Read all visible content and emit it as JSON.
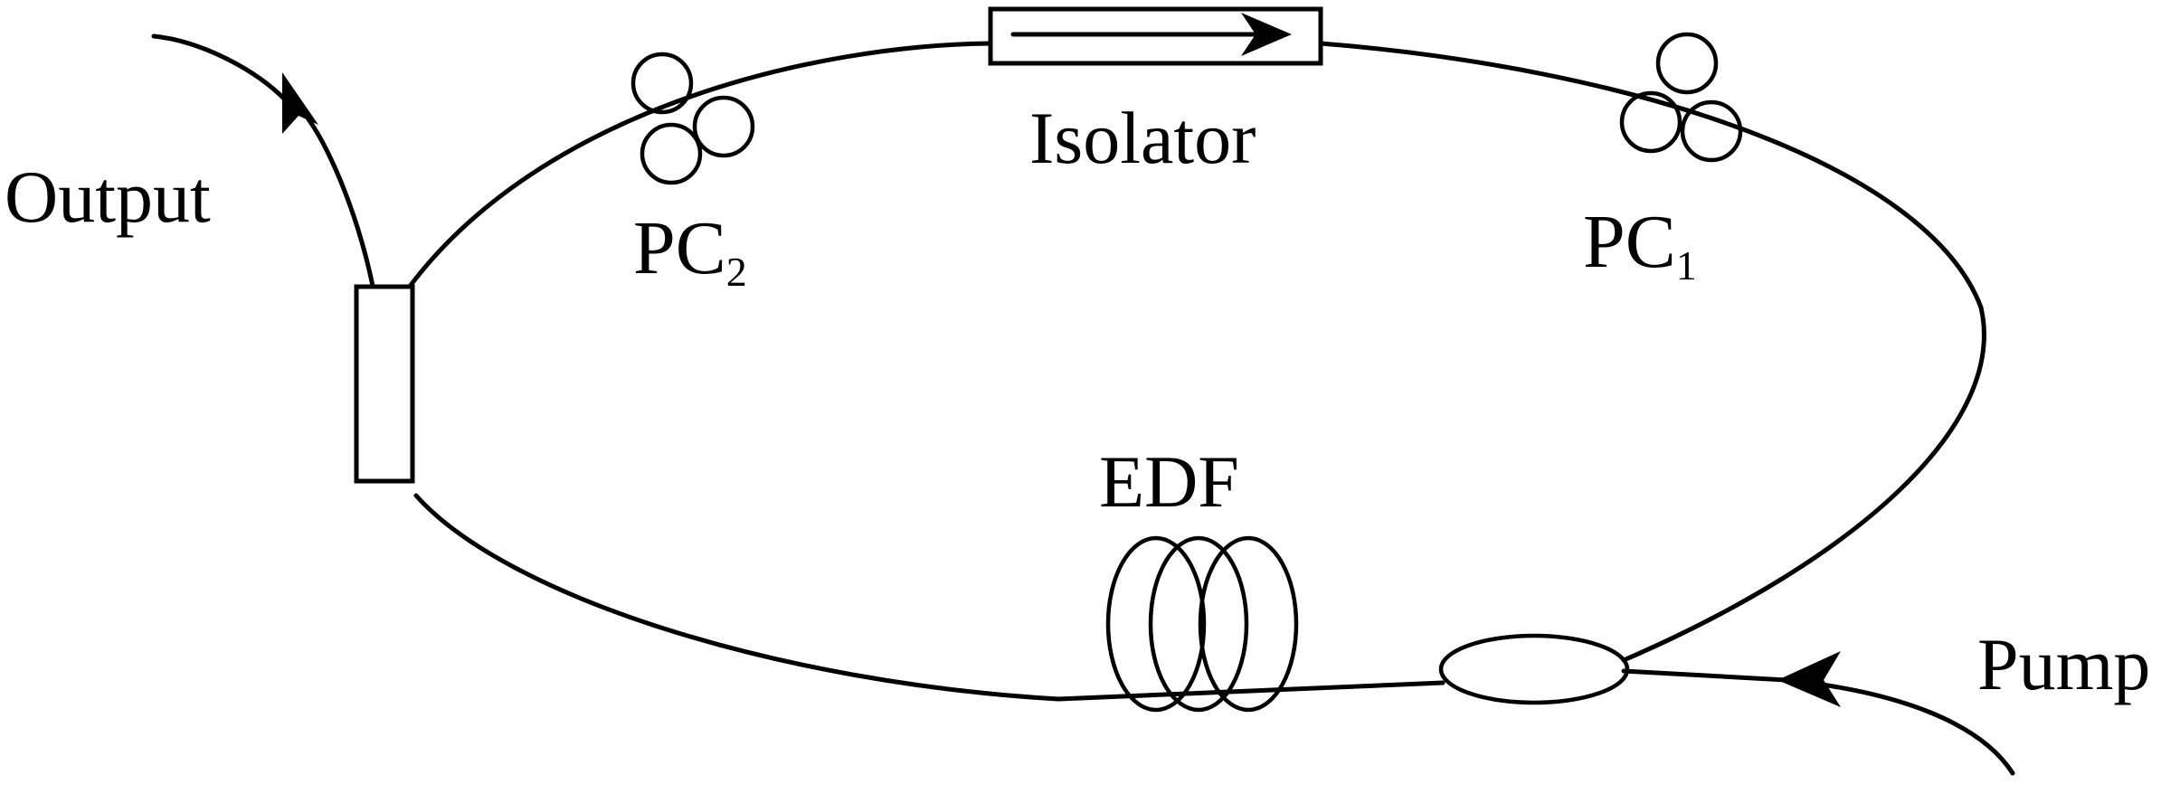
{
  "labels": {
    "output": "Output",
    "pc2": "PC",
    "pc2_sub": "2",
    "isolator": "Isolator",
    "pc1": "PC",
    "pc1_sub": "1",
    "edf": "EDF",
    "pump": "Pump"
  }
}
